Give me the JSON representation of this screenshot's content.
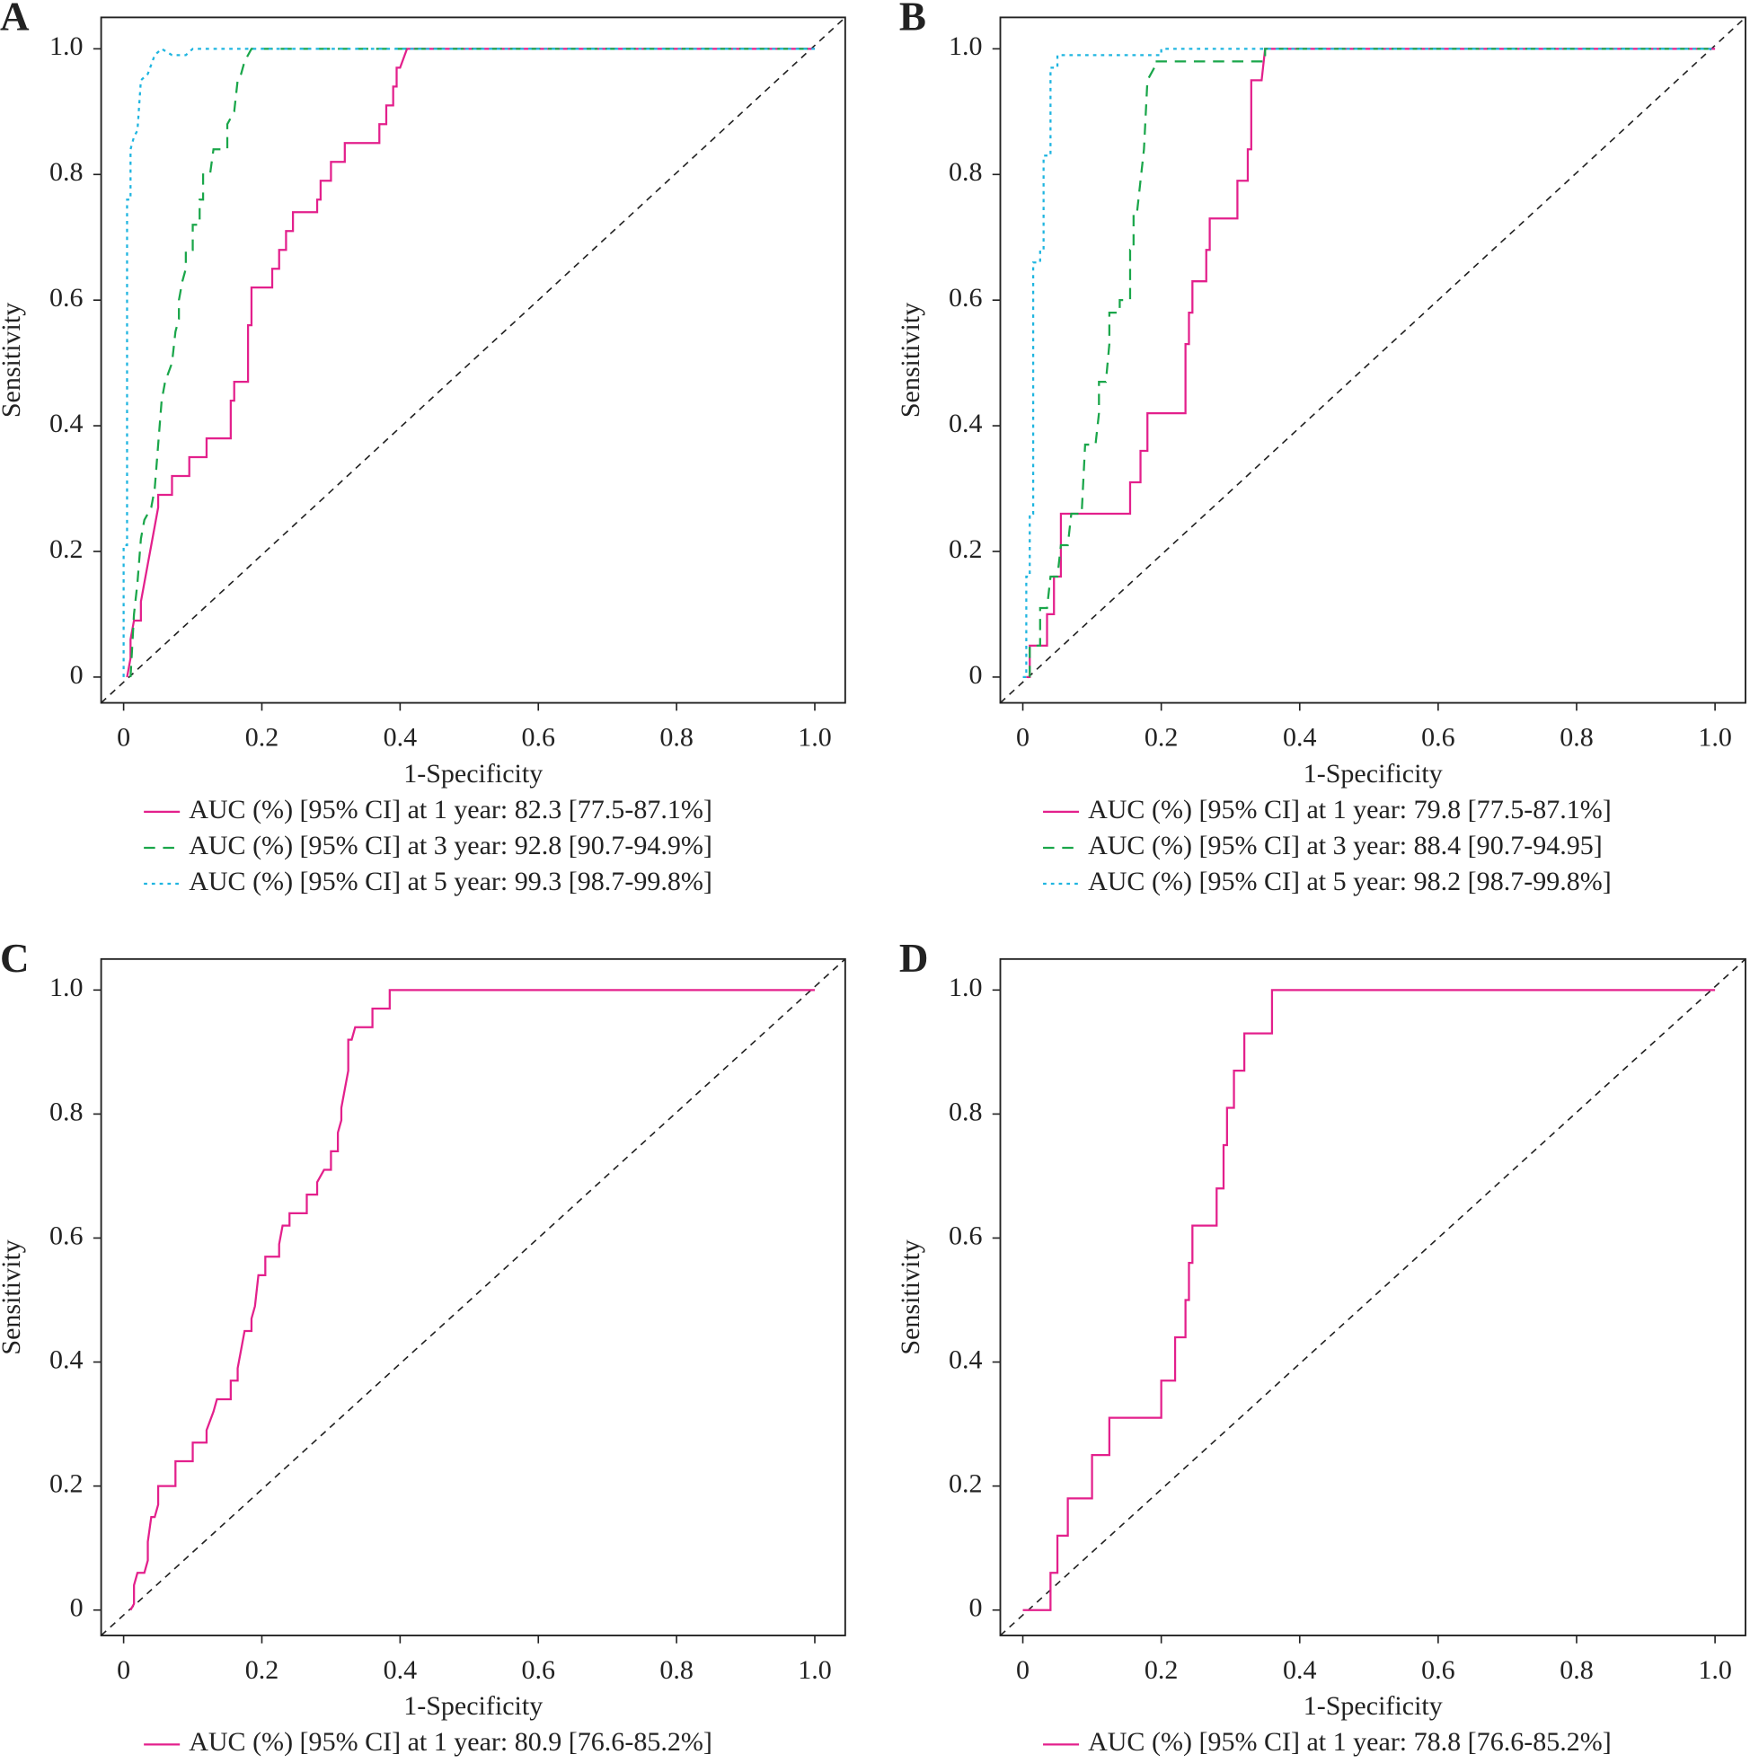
{
  "chart_data": [
    {
      "type": "line",
      "title": "A",
      "xlabel": "1-Specificity",
      "ylabel": "Sensitivity",
      "xlim": [
        -0.0325,
        1.044
      ],
      "ylim": [
        -0.041,
        1.05
      ],
      "xticks": [
        0,
        0.2,
        0.4,
        0.6,
        0.8,
        {
          "value": 1,
          "label": "1.0"
        }
      ],
      "yticks": [
        0,
        0.2,
        0.4,
        0.6,
        0.8,
        {
          "value": 1,
          "label": "1.0"
        }
      ],
      "series": [
        {
          "name": "AUC (%) [95% CI] at 1 year: 82.3 [77.5-87.1%]",
          "color": "#e3208c",
          "dash": "solid",
          "x": [
            0.005,
            0.01,
            0.01,
            0.015,
            0.025,
            0.025,
            0.03,
            0.035,
            0.04,
            0.045,
            0.05,
            0.05,
            0.07,
            0.07,
            0.095,
            0.095,
            0.12,
            0.12,
            0.155,
            0.155,
            0.16,
            0.16,
            0.18,
            0.18,
            0.185,
            0.185,
            0.215,
            0.215,
            0.225,
            0.225,
            0.235,
            0.235,
            0.245,
            0.245,
            0.28,
            0.28,
            0.285,
            0.285,
            0.3,
            0.3,
            0.32,
            0.32,
            0.37,
            0.37,
            0.38,
            0.38,
            0.39,
            0.39,
            0.395,
            0.395,
            0.4,
            0.41,
            1
          ],
          "values": [
            0,
            0.03,
            0.06,
            0.09,
            0.09,
            0.12,
            0.15,
            0.18,
            0.21,
            0.24,
            0.27,
            0.29,
            0.29,
            0.32,
            0.32,
            0.35,
            0.35,
            0.38,
            0.38,
            0.44,
            0.44,
            0.47,
            0.47,
            0.56,
            0.56,
            0.62,
            0.62,
            0.65,
            0.65,
            0.68,
            0.68,
            0.71,
            0.71,
            0.74,
            0.74,
            0.76,
            0.76,
            0.79,
            0.79,
            0.82,
            0.82,
            0.85,
            0.85,
            0.88,
            0.88,
            0.91,
            0.91,
            0.94,
            0.94,
            0.97,
            0.97,
            1,
            1
          ]
        },
        {
          "name": "AUC (%) [95% CI] at 3 year: 92.8 [90.7-94.9%]",
          "color": "#1aa64a",
          "dash": "dashed",
          "x": [
            0.01,
            0.015,
            0.02,
            0.025,
            0.03,
            0.04,
            0.045,
            0.05,
            0.055,
            0.06,
            0.07,
            0.075,
            0.08,
            0.08,
            0.085,
            0.09,
            0.09,
            0.1,
            0.1,
            0.11,
            0.11,
            0.115,
            0.115,
            0.125,
            0.13,
            0.15,
            0.15,
            0.16,
            0.165,
            0.17,
            0.175,
            0.185,
            1
          ],
          "values": [
            0,
            0.1,
            0.15,
            0.22,
            0.25,
            0.27,
            0.3,
            0.37,
            0.44,
            0.47,
            0.5,
            0.55,
            0.57,
            0.6,
            0.63,
            0.65,
            0.68,
            0.68,
            0.72,
            0.72,
            0.76,
            0.76,
            0.8,
            0.8,
            0.84,
            0.84,
            0.88,
            0.9,
            0.95,
            0.96,
            0.98,
            1,
            1
          ]
        },
        {
          "name": "AUC (%) [95% CI] at 5 year: 99.3 [98.7-99.8%]",
          "color": "#1fb5e0",
          "dash": "dotted",
          "x": [
            0,
            0,
            0.005,
            0.005,
            0.01,
            0.01,
            0.015,
            0.02,
            0.025,
            0.035,
            0.045,
            0.055,
            0.07,
            0.09,
            0.1,
            1
          ],
          "values": [
            0,
            0.21,
            0.21,
            0.76,
            0.76,
            0.84,
            0.86,
            0.87,
            0.95,
            0.96,
            0.99,
            1,
            0.99,
            0.99,
            1,
            1
          ]
        }
      ]
    },
    {
      "type": "line",
      "title": "B",
      "xlabel": "1-Specificity",
      "ylabel": "Sensitivity",
      "xlim": [
        -0.0325,
        1.044
      ],
      "ylim": [
        -0.041,
        1.05
      ],
      "xticks": [
        0,
        0.2,
        0.4,
        0.6,
        0.8,
        {
          "value": 1,
          "label": "1.0"
        }
      ],
      "yticks": [
        0,
        0.2,
        0.4,
        0.6,
        0.8,
        {
          "value": 1,
          "label": "1.0"
        }
      ],
      "series": [
        {
          "name": "AUC (%) [95% CI] at 1 year: 79.8 [77.5-87.1%]",
          "color": "#e3208c",
          "dash": "solid",
          "x": [
            0.005,
            0.01,
            0.01,
            0.035,
            0.035,
            0.045,
            0.045,
            0.055,
            0.055,
            0.155,
            0.155,
            0.17,
            0.17,
            0.18,
            0.18,
            0.235,
            0.235,
            0.24,
            0.24,
            0.245,
            0.245,
            0.265,
            0.265,
            0.27,
            0.27,
            0.31,
            0.31,
            0.325,
            0.325,
            0.33,
            0.33,
            0.345,
            0.35,
            1
          ],
          "values": [
            0,
            0,
            0.05,
            0.05,
            0.1,
            0.1,
            0.16,
            0.16,
            0.26,
            0.26,
            0.31,
            0.31,
            0.36,
            0.36,
            0.42,
            0.42,
            0.53,
            0.53,
            0.58,
            0.58,
            0.63,
            0.63,
            0.68,
            0.68,
            0.73,
            0.73,
            0.79,
            0.79,
            0.84,
            0.84,
            0.95,
            0.95,
            1,
            1
          ]
        },
        {
          "name": "AUC (%) [95% CI] at 3 year: 88.4 [90.7-94.95]",
          "color": "#1aa64a",
          "dash": "dashed",
          "x": [
            0.01,
            0.01,
            0.025,
            0.025,
            0.035,
            0.04,
            0.05,
            0.055,
            0.065,
            0.07,
            0.085,
            0.09,
            0.105,
            0.11,
            0.11,
            0.12,
            0.125,
            0.125,
            0.14,
            0.14,
            0.155,
            0.155,
            0.16,
            0.16,
            0.165,
            0.17,
            0.175,
            0.18,
            0.19,
            0.19,
            0.35,
            0.35,
            1
          ],
          "values": [
            0,
            0.05,
            0.05,
            0.11,
            0.11,
            0.16,
            0.16,
            0.21,
            0.21,
            0.26,
            0.26,
            0.37,
            0.37,
            0.42,
            0.47,
            0.47,
            0.53,
            0.58,
            0.58,
            0.6,
            0.6,
            0.68,
            0.68,
            0.74,
            0.74,
            0.79,
            0.84,
            0.95,
            0.97,
            0.98,
            0.98,
            1,
            1
          ]
        },
        {
          "name": "AUC (%) [95% CI] at 5 year: 98.2 [98.7-99.8%]",
          "color": "#1fb5e0",
          "dash": "dotted",
          "x": [
            0,
            0.005,
            0.005,
            0.01,
            0.01,
            0.015,
            0.015,
            0.025,
            0.025,
            0.03,
            0.03,
            0.04,
            0.04,
            0.05,
            0.05,
            0.2,
            0.2,
            1
          ],
          "values": [
            0,
            0,
            0.16,
            0.16,
            0.26,
            0.26,
            0.66,
            0.66,
            0.68,
            0.68,
            0.83,
            0.83,
            0.97,
            0.97,
            0.99,
            0.99,
            1,
            1
          ]
        }
      ]
    },
    {
      "type": "line",
      "title": "C",
      "xlabel": "1-Specificity",
      "ylabel": "Sensitivity",
      "xlim": [
        -0.0325,
        1.044
      ],
      "ylim": [
        -0.041,
        1.05
      ],
      "xticks": [
        0,
        0.2,
        0.4,
        0.6,
        0.8,
        {
          "value": 1,
          "label": "1.0"
        }
      ],
      "yticks": [
        0,
        0.2,
        0.4,
        0.6,
        0.8,
        {
          "value": 1,
          "label": "1.0"
        }
      ],
      "series": [
        {
          "name": "AUC (%) [95% CI] at 1 year: 80.9 [76.6-85.2%]",
          "color": "#e3208c",
          "dash": "solid",
          "x": [
            0.01,
            0.015,
            0.015,
            0.02,
            0.03,
            0.035,
            0.035,
            0.04,
            0.045,
            0.05,
            0.05,
            0.075,
            0.075,
            0.1,
            0.1,
            0.12,
            0.12,
            0.13,
            0.135,
            0.155,
            0.155,
            0.165,
            0.165,
            0.17,
            0.175,
            0.185,
            0.185,
            0.19,
            0.195,
            0.205,
            0.205,
            0.225,
            0.225,
            0.23,
            0.24,
            0.24,
            0.265,
            0.265,
            0.28,
            0.28,
            0.29,
            0.3,
            0.3,
            0.31,
            0.31,
            0.315,
            0.315,
            0.32,
            0.325,
            0.325,
            0.33,
            0.335,
            0.36,
            0.36,
            0.385,
            0.385,
            1
          ],
          "values": [
            0,
            0.01,
            0.04,
            0.06,
            0.06,
            0.08,
            0.11,
            0.15,
            0.15,
            0.17,
            0.2,
            0.2,
            0.24,
            0.24,
            0.27,
            0.27,
            0.29,
            0.32,
            0.34,
            0.34,
            0.37,
            0.37,
            0.39,
            0.42,
            0.45,
            0.45,
            0.47,
            0.49,
            0.54,
            0.54,
            0.57,
            0.57,
            0.59,
            0.62,
            0.62,
            0.64,
            0.64,
            0.67,
            0.67,
            0.69,
            0.71,
            0.71,
            0.74,
            0.74,
            0.77,
            0.79,
            0.81,
            0.84,
            0.87,
            0.92,
            0.92,
            0.94,
            0.94,
            0.97,
            0.97,
            1,
            1
          ]
        }
      ]
    },
    {
      "type": "line",
      "title": "D",
      "xlabel": "1-Specificity",
      "ylabel": "Sensitivity",
      "xlim": [
        -0.0325,
        1.044
      ],
      "ylim": [
        -0.041,
        1.05
      ],
      "xticks": [
        0,
        0.2,
        0.4,
        0.6,
        0.8,
        {
          "value": 1,
          "label": "1.0"
        }
      ],
      "yticks": [
        0,
        0.2,
        0.4,
        0.6,
        0.8,
        {
          "value": 1,
          "label": "1.0"
        }
      ],
      "series": [
        {
          "name": "AUC (%) [95% CI] at 1 year: 78.8 [76.6-85.2%]",
          "color": "#e3208c",
          "dash": "solid",
          "x": [
            0,
            0.04,
            0.04,
            0.05,
            0.05,
            0.065,
            0.065,
            0.1,
            0.1,
            0.125,
            0.125,
            0.2,
            0.2,
            0.22,
            0.22,
            0.235,
            0.235,
            0.24,
            0.24,
            0.245,
            0.245,
            0.28,
            0.28,
            0.29,
            0.29,
            0.295,
            0.295,
            0.305,
            0.305,
            0.32,
            0.32,
            0.36,
            0.36,
            1
          ],
          "values": [
            0,
            0,
            0.06,
            0.06,
            0.12,
            0.12,
            0.18,
            0.18,
            0.25,
            0.25,
            0.31,
            0.31,
            0.37,
            0.37,
            0.44,
            0.44,
            0.5,
            0.5,
            0.56,
            0.56,
            0.62,
            0.62,
            0.68,
            0.68,
            0.75,
            0.75,
            0.81,
            0.81,
            0.87,
            0.87,
            0.93,
            0.93,
            1,
            1
          ]
        }
      ]
    }
  ]
}
